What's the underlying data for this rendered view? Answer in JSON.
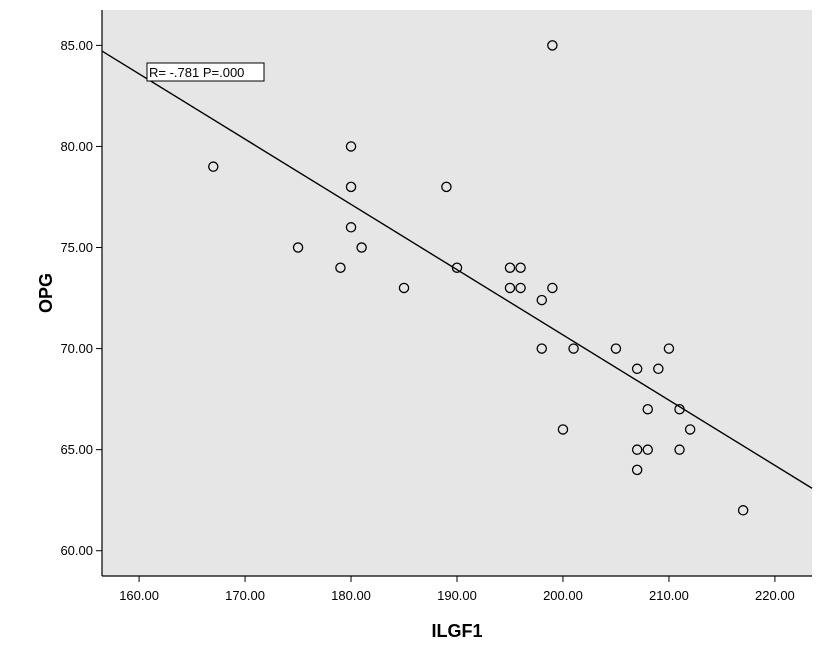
{
  "chart_data": {
    "type": "scatter",
    "title": "",
    "xlabel": "ILGF1",
    "ylabel": "OPG",
    "xlim": [
      156.5,
      223.5
    ],
    "ylim": [
      58.75,
      86.75
    ],
    "x_ticks": [
      160,
      170,
      180,
      190,
      200,
      210,
      220
    ],
    "y_ticks": [
      60,
      65,
      70,
      75,
      80,
      85
    ],
    "x_tick_labels": [
      "160.00",
      "170.00",
      "180.00",
      "190.00",
      "200.00",
      "210.00",
      "220.00"
    ],
    "y_tick_labels": [
      "60.00",
      "65.00",
      "70.00",
      "75.00",
      "80.00",
      "85.00"
    ],
    "grid": false,
    "plot_background": "#e6e6e6",
    "point_style": "open-circle",
    "points": [
      {
        "x": 167,
        "y": 79
      },
      {
        "x": 175,
        "y": 75
      },
      {
        "x": 179,
        "y": 74
      },
      {
        "x": 180,
        "y": 80
      },
      {
        "x": 180,
        "y": 78
      },
      {
        "x": 180,
        "y": 76
      },
      {
        "x": 181,
        "y": 75
      },
      {
        "x": 185,
        "y": 73
      },
      {
        "x": 189,
        "y": 78
      },
      {
        "x": 190,
        "y": 74
      },
      {
        "x": 195,
        "y": 74
      },
      {
        "x": 195,
        "y": 73
      },
      {
        "x": 196,
        "y": 74
      },
      {
        "x": 196,
        "y": 73
      },
      {
        "x": 198,
        "y": 72.4
      },
      {
        "x": 198,
        "y": 70
      },
      {
        "x": 199,
        "y": 85
      },
      {
        "x": 199,
        "y": 73
      },
      {
        "x": 200,
        "y": 66
      },
      {
        "x": 201,
        "y": 70
      },
      {
        "x": 205,
        "y": 70
      },
      {
        "x": 207,
        "y": 69
      },
      {
        "x": 207,
        "y": 65
      },
      {
        "x": 207,
        "y": 64
      },
      {
        "x": 208,
        "y": 67
      },
      {
        "x": 208,
        "y": 65
      },
      {
        "x": 209,
        "y": 69
      },
      {
        "x": 210,
        "y": 70
      },
      {
        "x": 211,
        "y": 67
      },
      {
        "x": 211,
        "y": 65
      },
      {
        "x": 212,
        "y": 66
      },
      {
        "x": 217,
        "y": 62
      }
    ],
    "fit_line": {
      "x": [
        156.5,
        223.5
      ],
      "y": [
        84.72,
        63.09
      ]
    },
    "annotation": "R= -.781 P=.000"
  }
}
